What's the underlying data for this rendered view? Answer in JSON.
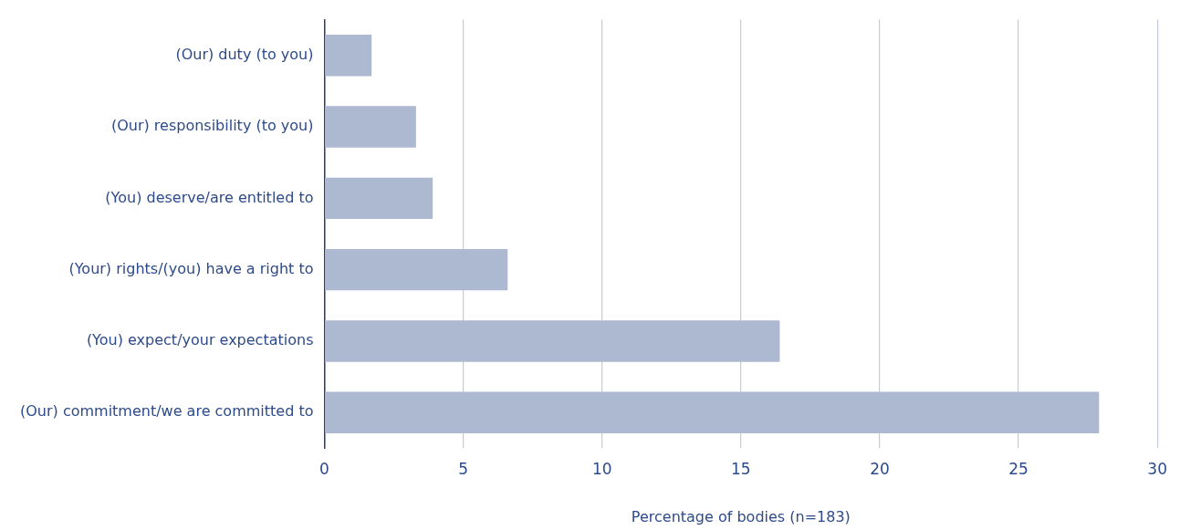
{
  "chart_data": {
    "type": "bar",
    "orientation": "horizontal",
    "xlabel": "Percentage of bodies (n=183)",
    "categories": [
      "(Our) duty (to you)",
      "(Our) responsibility (to you)",
      "(You) deserve/are entitled to",
      "(Your) rights/(you) have a right to",
      "(You) expect/your expectations",
      "(Our) commitment/we are committed to"
    ],
    "values": [
      1.7,
      3.3,
      3.9,
      6.6,
      16.4,
      27.9
    ],
    "color": "#adb9d1",
    "xlim": [
      0,
      30
    ],
    "xticks": [
      0,
      5,
      10,
      15,
      20,
      25,
      30
    ],
    "grid": "x",
    "legend": false
  }
}
